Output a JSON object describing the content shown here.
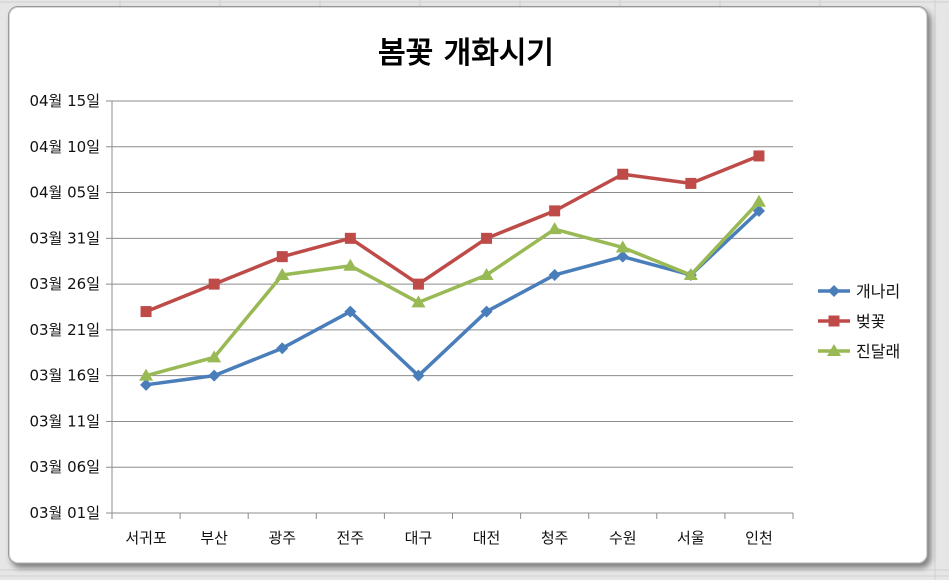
{
  "chart_data": {
    "type": "line",
    "title": "봄꽃 개화시기",
    "categories": [
      "서귀포",
      "부산",
      "광주",
      "전주",
      "대구",
      "대전",
      "청주",
      "수원",
      "서울",
      "인천"
    ],
    "y_ticks": [
      "03월 01일",
      "03월 06일",
      "03월 11일",
      "03월 16일",
      "03월 21일",
      "03월 26일",
      "03월 31일",
      "04월 05일",
      "04월 10일",
      "04월 15일"
    ],
    "series": [
      {
        "name": "개나리",
        "color": "#4a7ebb",
        "marker": "diamond",
        "values": [
          "03-15",
          "03-16",
          "03-19",
          "03-23",
          "03-16",
          "03-23",
          "03-27",
          "03-29",
          "03-27",
          "04-03"
        ]
      },
      {
        "name": "벚꽃",
        "color": "#be4b48",
        "marker": "square",
        "values": [
          "03-23",
          "03-26",
          "03-29",
          "03-31",
          "03-26",
          "03-31",
          "04-03",
          "04-07",
          "04-06",
          "04-09"
        ]
      },
      {
        "name": "진달래",
        "color": "#98b954",
        "marker": "triangle",
        "values": [
          "03-16",
          "03-18",
          "03-27",
          "03-28",
          "03-24",
          "03-27",
          "04-01",
          "03-30",
          "03-27",
          "04-04"
        ]
      }
    ],
    "ylim": [
      "03-01",
      "04-15"
    ],
    "grid": true,
    "legend": "right"
  }
}
